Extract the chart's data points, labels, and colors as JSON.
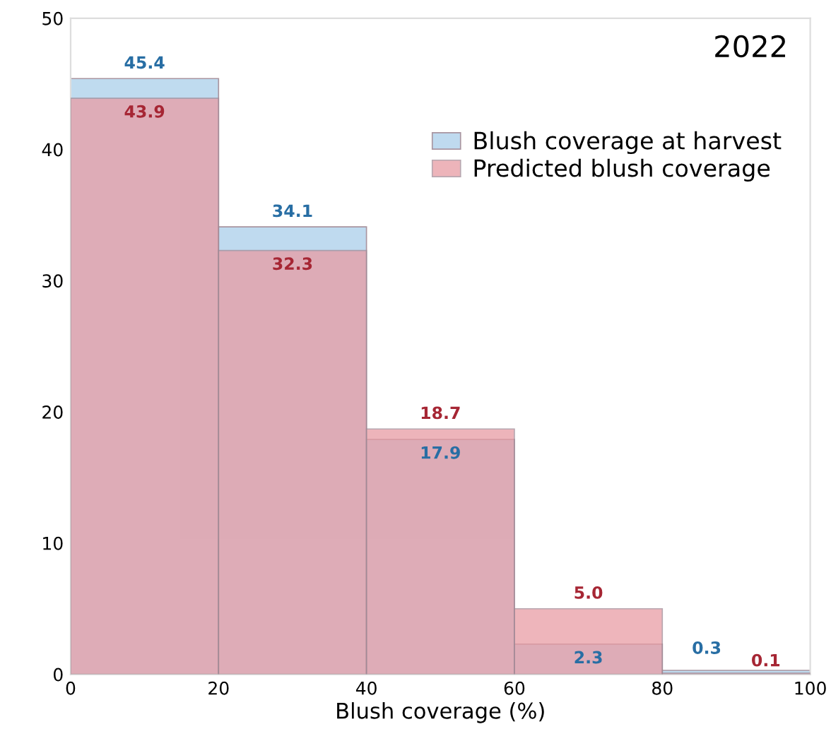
{
  "chart_data": {
    "type": "histogram",
    "title": "2022",
    "xlabel": "Blush coverage (%)",
    "bins": [
      0,
      20,
      40,
      60,
      80,
      100
    ],
    "series": [
      {
        "name": "Blush coverage at harvest",
        "color": "#b9d7ee",
        "values": [
          45.4,
          34.1,
          17.9,
          2.3,
          0.3
        ],
        "value_labels": [
          "45.4",
          "34.1",
          "17.9",
          "2.3",
          "0.3"
        ]
      },
      {
        "name": "Predicted blush coverage",
        "color": "#e89ca4",
        "values": [
          43.9,
          32.3,
          18.7,
          5.0,
          0.1
        ],
        "value_labels": [
          "43.9",
          "32.3",
          "18.7",
          "5.0",
          "0.1"
        ]
      }
    ],
    "xlim": [
      0,
      100
    ],
    "ylim": [
      0,
      50
    ],
    "xticks": [
      0,
      20,
      40,
      60,
      80,
      100
    ],
    "yticks": [
      0,
      10,
      20,
      30,
      40,
      50
    ],
    "legend": "top right",
    "grid": false
  }
}
